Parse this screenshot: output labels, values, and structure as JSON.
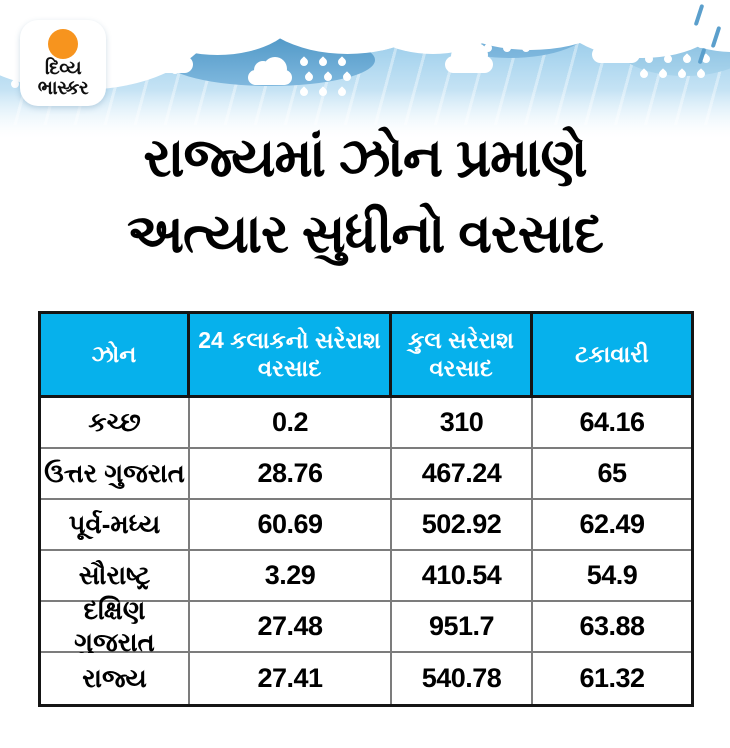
{
  "logo": {
    "line1": "દિવ્ય",
    "line2": "ભાસ્કર",
    "sun_color": "#F7941E"
  },
  "title": {
    "line1": "રાજ્યમાં ઝોન પ્રમાણે",
    "line2": "અત્યાર સુધીનો વરસાદ"
  },
  "colors": {
    "header_bg": "#06B1EC",
    "header_text": "#FFFFFF",
    "table_outer_border": "#151515",
    "cell_border": "#7C7C7C",
    "sky_blue": "#A8D4EE",
    "dark_cloud": "#4F97C6",
    "title_text": "#000000"
  },
  "table": {
    "headers": [
      "ઝોન",
      "24 કલાકનો સરેરાશ વરસાદ",
      "કુલ સરેરાશ વરસાદ",
      "ટકાવારી"
    ],
    "rows": [
      {
        "zone": "કચ્છ",
        "rain24": "0.2",
        "total": "310",
        "percent": "64.16"
      },
      {
        "zone": "ઉત્તર ગુજરાત",
        "rain24": "28.76",
        "total": "467.24",
        "percent": "65"
      },
      {
        "zone": "પૂર્વ-મધ્ય",
        "rain24": "60.69",
        "total": "502.92",
        "percent": "62.49"
      },
      {
        "zone": "સૌરાષ્ટ્ર",
        "rain24": "3.29",
        "total": "410.54",
        "percent": "54.9"
      },
      {
        "zone": "દક્ષિણ ગુજરાત",
        "rain24": "27.48",
        "total": "951.7",
        "percent": "63.88"
      },
      {
        "zone": "રાજ્ય",
        "rain24": "27.41",
        "total": "540.78",
        "percent": "61.32"
      }
    ]
  },
  "chart_data": {
    "type": "table",
    "title": "રાજ્યમાં ઝોન પ્રમાણે અત્યાર સુધીનો વરસાદ",
    "columns": [
      "ઝોન",
      "24 કલાકનો સરેરાશ વરસાદ",
      "કુલ સરેરાશ વરસાદ",
      "ટકાવારી"
    ],
    "rows": [
      [
        "કચ્છ",
        0.2,
        310,
        64.16
      ],
      [
        "ઉત્તર ગુજરાત",
        28.76,
        467.24,
        65
      ],
      [
        "પૂર્વ-મધ્ય",
        60.69,
        502.92,
        62.49
      ],
      [
        "સૌરાષ્ટ્ર",
        3.29,
        410.54,
        54.9
      ],
      [
        "દક્ષિણ ગુજરાત",
        27.48,
        951.7,
        63.88
      ],
      [
        "રાજ્ય",
        27.41,
        540.78,
        61.32
      ]
    ]
  }
}
